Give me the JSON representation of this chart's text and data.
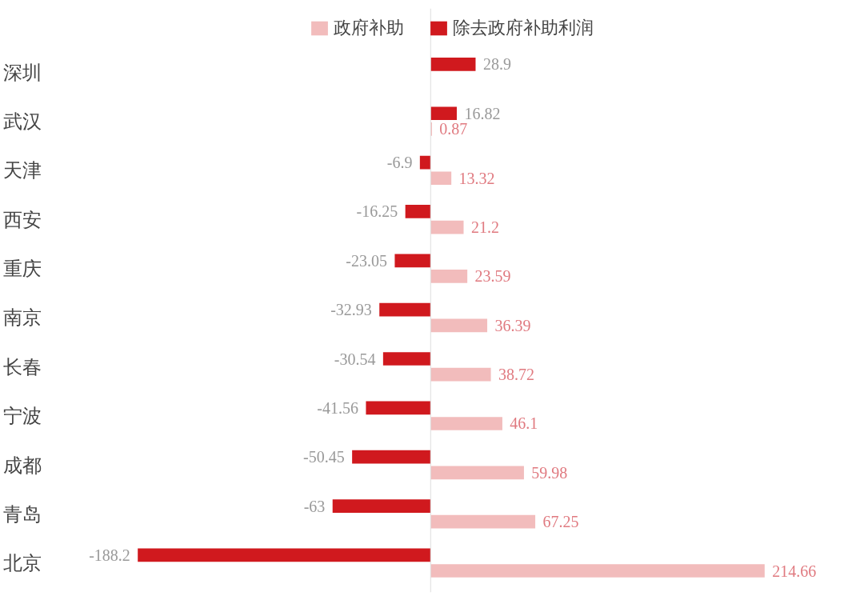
{
  "chart_data": {
    "type": "bar",
    "orientation": "horizontal",
    "categories": [
      "深圳",
      "武汉",
      "天津",
      "西安",
      "重庆",
      "南京",
      "长春",
      "宁波",
      "成都",
      "青岛",
      "北京"
    ],
    "series": [
      {
        "name": "政府补助",
        "color": "#f2bcbc",
        "values": [
          null,
          0.87,
          13.32,
          21.2,
          23.59,
          36.39,
          38.72,
          46.1,
          59.98,
          67.25,
          214.66
        ]
      },
      {
        "name": "除去政府补助利润",
        "color": "#d0191e",
        "values": [
          28.9,
          16.82,
          -6.9,
          -16.25,
          -23.05,
          -32.93,
          -30.54,
          -41.56,
          -50.45,
          -63,
          -188.2
        ]
      }
    ],
    "data_labels": true,
    "legend": "top",
    "grid": false
  }
}
